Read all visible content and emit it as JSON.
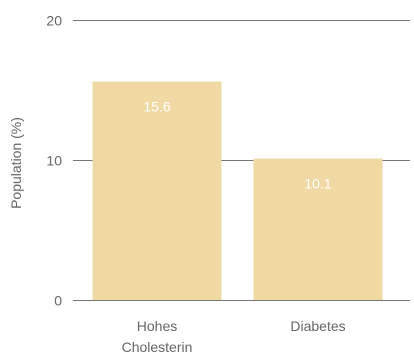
{
  "chart_data": {
    "type": "bar",
    "categories": [
      [
        "Hohes",
        "Cholesterin"
      ],
      [
        "Diabetes"
      ]
    ],
    "values": [
      15.6,
      10.1
    ],
    "value_labels": [
      "15.6",
      "10.1"
    ],
    "ylabel": "Population (%)",
    "ylim": [
      0,
      20
    ],
    "yticks": [
      0,
      10,
      20
    ],
    "ytick_labels": [
      "0",
      "10",
      "20"
    ],
    "grid": true,
    "bar_color": "#f0d9a3",
    "grid_color": "#777777",
    "text_color": "#666666",
    "data_label_color": "#ffffff"
  }
}
